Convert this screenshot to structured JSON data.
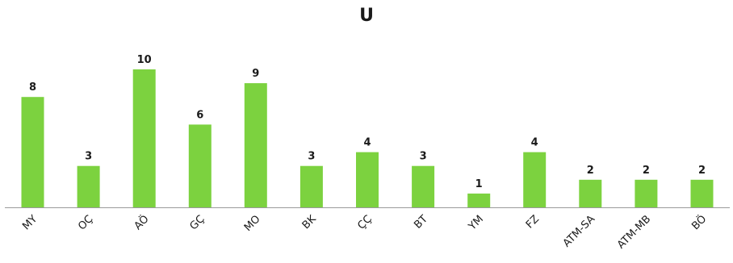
{
  "chart_data": {
    "type": "bar",
    "title": "U",
    "categories": [
      "MY",
      "OÇ",
      "AÖ",
      "GÇ",
      "MO",
      "BK",
      "ÇÇ",
      "BT",
      "YM",
      "FZ",
      "ATM-SA",
      "ATM-MB",
      "BÖ"
    ],
    "values": [
      8,
      3,
      10,
      6,
      9,
      3,
      4,
      3,
      1,
      4,
      2,
      2,
      2
    ],
    "xlabel": "",
    "ylabel": "",
    "ylim": [
      0,
      10
    ],
    "grid": false,
    "legend": "none",
    "data_labels": true,
    "colors": {
      "bar": "#7cd23f",
      "axis": "#9a9a9a",
      "text": "#1a1a1a"
    }
  }
}
